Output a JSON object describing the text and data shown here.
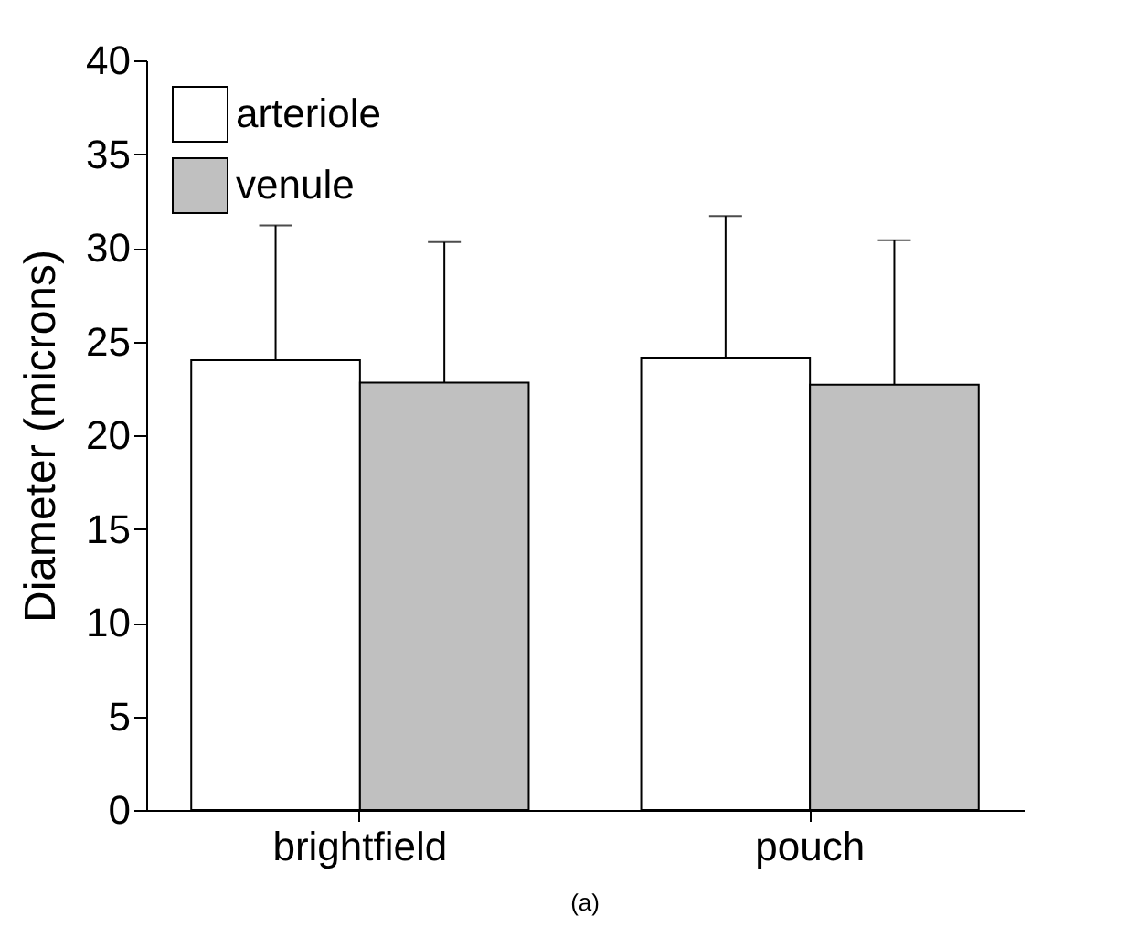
{
  "chart_data": {
    "type": "bar",
    "ylabel": "Diameter (microns)",
    "categories": [
      "brightfield",
      "pouch"
    ],
    "series": [
      {
        "name": "arteriole",
        "color": "#ffffff",
        "values": [
          24.0,
          24.1
        ],
        "errors": [
          [
            24.0,
            31.2
          ],
          [
            24.1,
            31.7
          ]
        ]
      },
      {
        "name": "venule",
        "color": "#c0c0c0",
        "values": [
          22.8,
          22.7
        ],
        "errors": [
          [
            22.8,
            30.3
          ],
          [
            22.7,
            30.4
          ]
        ]
      }
    ],
    "ylim": [
      0,
      40
    ],
    "yticks": [
      0,
      5,
      10,
      15,
      20,
      25,
      30,
      35,
      40
    ],
    "legend": "top left",
    "annotations": [
      "(a)"
    ]
  }
}
